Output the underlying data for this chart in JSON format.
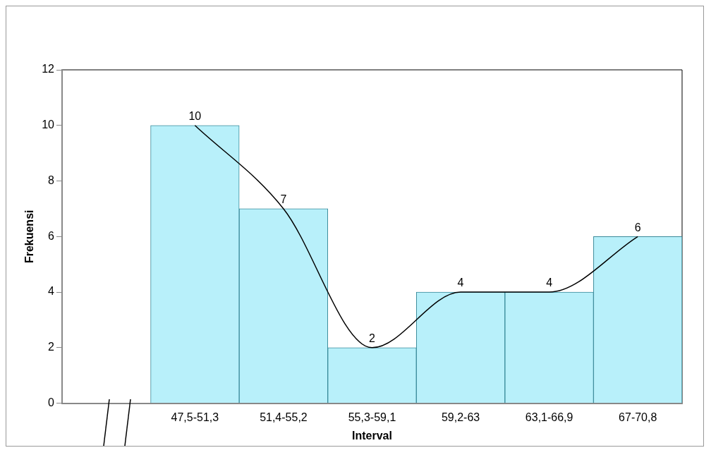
{
  "chart_data": {
    "type": "bar",
    "xlabel": "Interval",
    "ylabel": "Frekuensi",
    "categories": [
      null,
      "47,5-51,3",
      "51,4-55,2",
      "55,3-59,1",
      "59,2-63",
      "63,1-66,9",
      "67-70,8"
    ],
    "series": [
      {
        "color": "#b8f0fa",
        "values": [
          null,
          10,
          7,
          2,
          4,
          4,
          6
        ],
        "value_labels": [
          null,
          "10",
          "7",
          "2",
          "4",
          "4",
          "6"
        ]
      },
      {
        "type": "line",
        "color": "#000000",
        "values": [
          null,
          10,
          7,
          2,
          4,
          4,
          6
        ]
      }
    ],
    "ylim": [
      0,
      12
    ],
    "yticks": [
      0,
      2,
      4,
      6,
      8,
      10,
      12
    ],
    "grid": false,
    "legend": false,
    "marker": "none"
  }
}
